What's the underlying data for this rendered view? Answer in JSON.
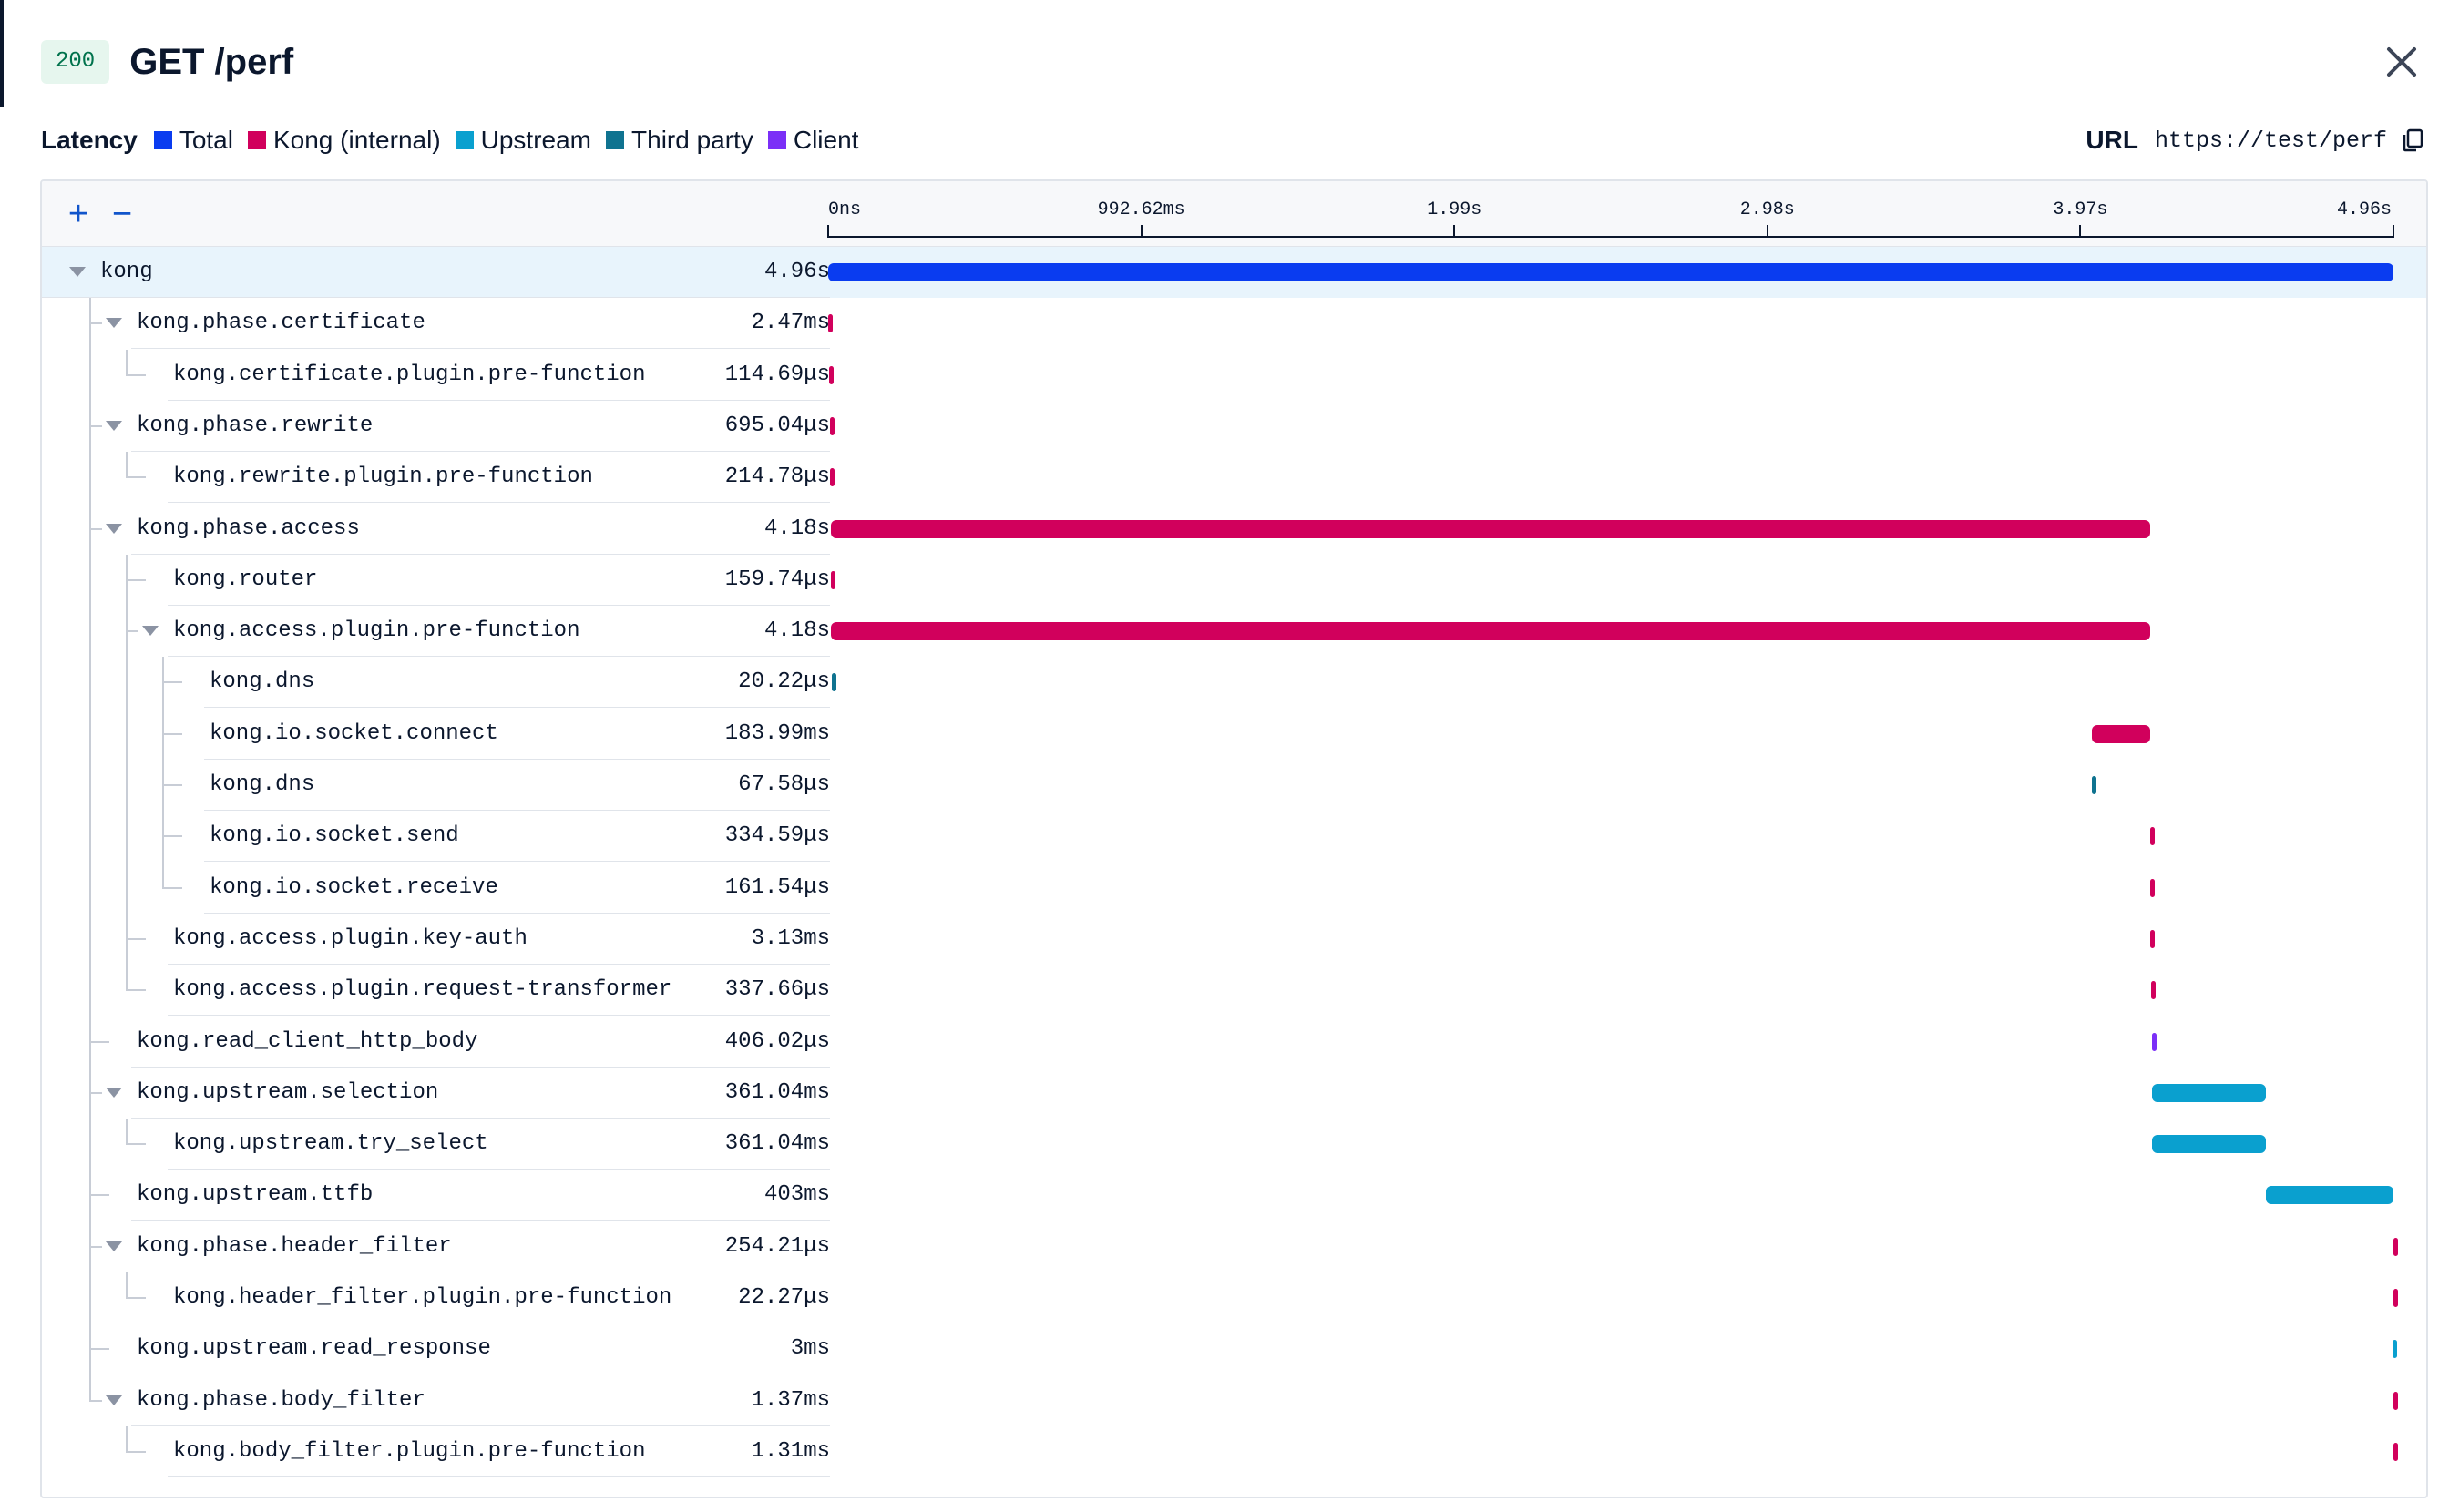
{
  "header": {
    "status_code": "200",
    "title": "GET /perf"
  },
  "legend": {
    "title": "Latency",
    "items": [
      {
        "label": "Total",
        "color": "#0a3cf0"
      },
      {
        "label": "Kong (internal)",
        "color": "#d1005c"
      },
      {
        "label": "Upstream",
        "color": "#0aa0cf"
      },
      {
        "label": "Third party",
        "color": "#0f7390"
      },
      {
        "label": "Client",
        "color": "#7b2ff7"
      }
    ]
  },
  "url": {
    "label": "URL",
    "value": "https://test/perf"
  },
  "toolbar": {
    "expand_label": "+",
    "collapse_label": "−"
  },
  "axis": {
    "ticks": [
      "0ns",
      "992.62ms",
      "1.99s",
      "2.98s",
      "3.97s",
      "4.96s"
    ],
    "max_seconds": 4.96
  },
  "chart_data": {
    "type": "gantt",
    "unit": "s",
    "spans": [
      {
        "name": "kong",
        "duration": "4.96s",
        "depth": 0,
        "expandable": true,
        "category": "total",
        "start": 0.0,
        "end": 4.96
      },
      {
        "name": "kong.phase.certificate",
        "duration": "2.47ms",
        "depth": 1,
        "expandable": true,
        "category": "kong",
        "start": 0.0,
        "end": 0.00247
      },
      {
        "name": "kong.certificate.plugin.pre-function",
        "duration": "114.69μs",
        "depth": 2,
        "expandable": false,
        "category": "kong",
        "start": 0.002,
        "end": 0.00211
      },
      {
        "name": "kong.phase.rewrite",
        "duration": "695.04μs",
        "depth": 1,
        "expandable": true,
        "category": "kong",
        "start": 0.006,
        "end": 0.0067
      },
      {
        "name": "kong.rewrite.plugin.pre-function",
        "duration": "214.78μs",
        "depth": 2,
        "expandable": false,
        "category": "kong",
        "start": 0.0065,
        "end": 0.0067
      },
      {
        "name": "kong.phase.access",
        "duration": "4.18s",
        "depth": 1,
        "expandable": true,
        "category": "kong",
        "start": 0.008,
        "end": 4.188
      },
      {
        "name": "kong.router",
        "duration": "159.74μs",
        "depth": 2,
        "expandable": false,
        "category": "kong",
        "start": 0.009,
        "end": 0.0092
      },
      {
        "name": "kong.access.plugin.pre-function",
        "duration": "4.18s",
        "depth": 2,
        "expandable": true,
        "category": "kong",
        "start": 0.01,
        "end": 4.19
      },
      {
        "name": "kong.dns",
        "duration": "20.22μs",
        "depth": 3,
        "expandable": false,
        "category": "third",
        "start": 0.011,
        "end": 0.01102
      },
      {
        "name": "kong.io.socket.connect",
        "duration": "183.99ms",
        "depth": 3,
        "expandable": false,
        "category": "kong",
        "start": 4.005,
        "end": 4.189
      },
      {
        "name": "kong.dns",
        "duration": "67.58μs",
        "depth": 3,
        "expandable": false,
        "category": "third",
        "start": 4.005,
        "end": 4.00507
      },
      {
        "name": "kong.io.socket.send",
        "duration": "334.59μs",
        "depth": 3,
        "expandable": false,
        "category": "kong",
        "start": 4.189,
        "end": 4.1893
      },
      {
        "name": "kong.io.socket.receive",
        "duration": "161.54μs",
        "depth": 3,
        "expandable": false,
        "category": "kong",
        "start": 4.19,
        "end": 4.1902
      },
      {
        "name": "kong.access.plugin.key-auth",
        "duration": "3.13ms",
        "depth": 2,
        "expandable": false,
        "category": "kong",
        "start": 4.19,
        "end": 4.1931
      },
      {
        "name": "kong.access.plugin.request-transformer",
        "duration": "337.66μs",
        "depth": 2,
        "expandable": false,
        "category": "kong",
        "start": 4.193,
        "end": 4.1933
      },
      {
        "name": "kong.read_client_http_body",
        "duration": "406.02μs",
        "depth": 1,
        "expandable": false,
        "category": "client",
        "start": 4.194,
        "end": 4.1944
      },
      {
        "name": "kong.upstream.selection",
        "duration": "361.04ms",
        "depth": 1,
        "expandable": true,
        "category": "upstream",
        "start": 4.195,
        "end": 4.556
      },
      {
        "name": "kong.upstream.try_select",
        "duration": "361.04ms",
        "depth": 2,
        "expandable": false,
        "category": "upstream",
        "start": 4.195,
        "end": 4.556
      },
      {
        "name": "kong.upstream.ttfb",
        "duration": "403ms",
        "depth": 1,
        "expandable": false,
        "category": "upstream",
        "start": 4.556,
        "end": 4.959
      },
      {
        "name": "kong.phase.header_filter",
        "duration": "254.21μs",
        "depth": 1,
        "expandable": true,
        "category": "kong",
        "start": 4.9595,
        "end": 4.9598
      },
      {
        "name": "kong.header_filter.plugin.pre-function",
        "duration": "22.27μs",
        "depth": 2,
        "expandable": false,
        "category": "kong",
        "start": 4.9596,
        "end": 4.95962
      },
      {
        "name": "kong.upstream.read_response",
        "duration": "3ms",
        "depth": 1,
        "expandable": false,
        "category": "upstream",
        "start": 4.9566,
        "end": 4.9596
      },
      {
        "name": "kong.phase.body_filter",
        "duration": "1.37ms",
        "depth": 1,
        "expandable": true,
        "category": "kong",
        "start": 4.9586,
        "end": 4.96
      },
      {
        "name": "kong.body_filter.plugin.pre-function",
        "duration": "1.31ms",
        "depth": 2,
        "expandable": false,
        "category": "kong",
        "start": 4.9587,
        "end": 4.96
      }
    ]
  }
}
